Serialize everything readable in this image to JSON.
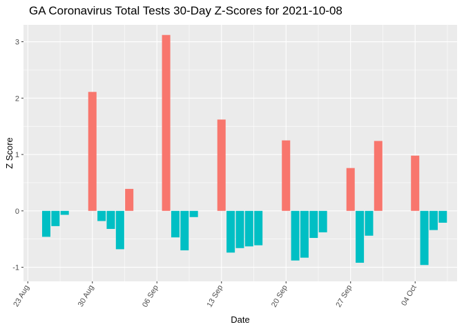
{
  "chart_data": {
    "type": "bar",
    "title": "GA Coronavirus Total Tests 30-Day Z-Scores for 2021-10-08",
    "xlabel": "Date",
    "ylabel": "Z Score",
    "x_ticks": [
      {
        "date": "2021-08-23",
        "label": "23 Aug"
      },
      {
        "date": "2021-08-30",
        "label": "30 Aug"
      },
      {
        "date": "2021-09-06",
        "label": "06 Sep"
      },
      {
        "date": "2021-09-13",
        "label": "13 Sep"
      },
      {
        "date": "2021-09-20",
        "label": "20 Sep"
      },
      {
        "date": "2021-09-27",
        "label": "27 Sep"
      },
      {
        "date": "2021-10-04",
        "label": "04 Oct"
      }
    ],
    "y_ticks": [
      -1,
      0,
      1,
      2,
      3
    ],
    "xlim": [
      "2021-08-22",
      "2021-10-09"
    ],
    "ylim": [
      -1.25,
      3.3
    ],
    "grid": true,
    "legend": "none",
    "colors": {
      "positive": "#F8766D",
      "negative": "#00BFC4",
      "panel": "#EBEBEB",
      "grid": "#FFFFFF"
    },
    "x": [
      "2021-08-25",
      "2021-08-26",
      "2021-08-27",
      "2021-08-30",
      "2021-08-31",
      "2021-09-01",
      "2021-09-02",
      "2021-09-03",
      "2021-09-07",
      "2021-09-08",
      "2021-09-09",
      "2021-09-10",
      "2021-09-13",
      "2021-09-14",
      "2021-09-15",
      "2021-09-16",
      "2021-09-17",
      "2021-09-20",
      "2021-09-21",
      "2021-09-22",
      "2021-09-23",
      "2021-09-24",
      "2021-09-27",
      "2021-09-28",
      "2021-09-29",
      "2021-09-30",
      "2021-10-04",
      "2021-10-05",
      "2021-10-06",
      "2021-10-07"
    ],
    "values": [
      -0.46,
      -0.27,
      -0.07,
      2.11,
      -0.18,
      -0.32,
      -0.68,
      0.39,
      3.12,
      -0.47,
      -0.7,
      -0.11,
      1.62,
      -0.74,
      -0.66,
      -0.63,
      -0.61,
      1.25,
      -0.88,
      -0.83,
      -0.48,
      -0.38,
      0.76,
      -0.92,
      -0.44,
      1.24,
      0.98,
      -0.96,
      -0.34,
      -0.21
    ]
  }
}
